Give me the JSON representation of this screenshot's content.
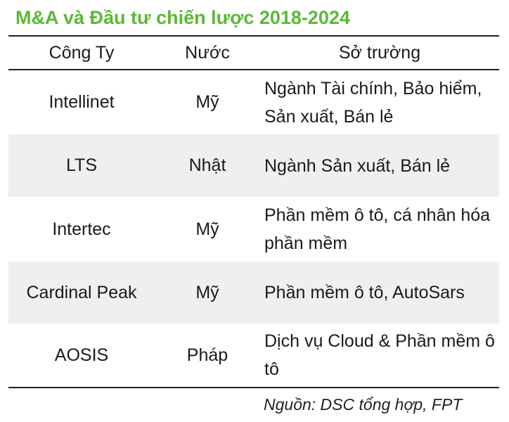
{
  "title": "M&A và Đầu tư chiến lược 2018-2024",
  "table": {
    "headers": {
      "company": "Công Ty",
      "country": "Nước",
      "strength": "Sở trường"
    },
    "rows": [
      {
        "company": "Intellinet",
        "country": "Mỹ",
        "strength": "Ngành Tài chính, Bảo hiểm, Sản xuất, Bán lẻ"
      },
      {
        "company": "LTS",
        "country": "Nhật",
        "strength": "Ngành Sản xuất, Bán lẻ"
      },
      {
        "company": "Intertec",
        "country": "Mỹ",
        "strength": "Phần mềm ô tô, cá nhân hóa phần mềm"
      },
      {
        "company": "Cardinal Peak",
        "country": "Mỹ",
        "strength": "Phần mềm ô tô, AutoSars"
      },
      {
        "company": "AOSIS",
        "country": "Pháp",
        "strength": "Dịch vụ Cloud & Phần mềm ô tô"
      }
    ]
  },
  "source": "Nguồn: DSC tổng hợp, FPT",
  "colors": {
    "title": "#5cb836",
    "row_shade": "#efefef",
    "rule": "#222222"
  }
}
